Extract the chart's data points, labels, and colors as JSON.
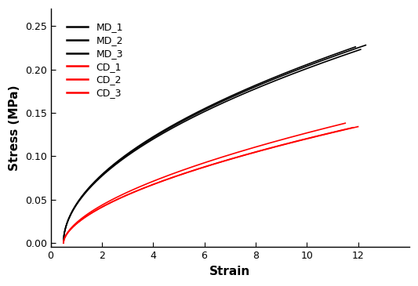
{
  "title": "",
  "xlabel": "Strain",
  "ylabel": "Stress (MPa)",
  "xlim": [
    0,
    14
  ],
  "ylim": [
    -0.005,
    0.27
  ],
  "xticks": [
    0,
    2,
    4,
    6,
    8,
    10,
    12
  ],
  "yticks": [
    0.0,
    0.05,
    0.1,
    0.15,
    0.2,
    0.25
  ],
  "md_color": "#000000",
  "cd_color": "#ff0000",
  "md_curves": [
    {
      "start_strain": 0.5,
      "end_strain": 12.3,
      "end_stress": 0.228,
      "exponent": 0.52
    },
    {
      "start_strain": 0.5,
      "end_strain": 12.1,
      "end_stress": 0.223,
      "exponent": 0.52
    },
    {
      "start_strain": 0.5,
      "end_strain": 11.9,
      "end_stress": 0.226,
      "exponent": 0.52
    }
  ],
  "cd_curves": [
    {
      "start_strain": 0.5,
      "end_strain": 11.5,
      "end_stress": 0.138,
      "exponent": 0.58
    },
    {
      "start_strain": 0.5,
      "end_strain": 12.0,
      "end_stress": 0.134,
      "exponent": 0.58
    },
    {
      "start_strain": 0.5,
      "end_strain": 11.8,
      "end_stress": 0.133,
      "exponent": 0.58
    }
  ],
  "legend_labels": [
    "MD_1",
    "MD_2",
    "MD_3",
    "CD_1",
    "CD_2",
    "CD_3"
  ],
  "background_color": "#ffffff",
  "legend_fontsize": 9,
  "axis_fontsize": 11
}
